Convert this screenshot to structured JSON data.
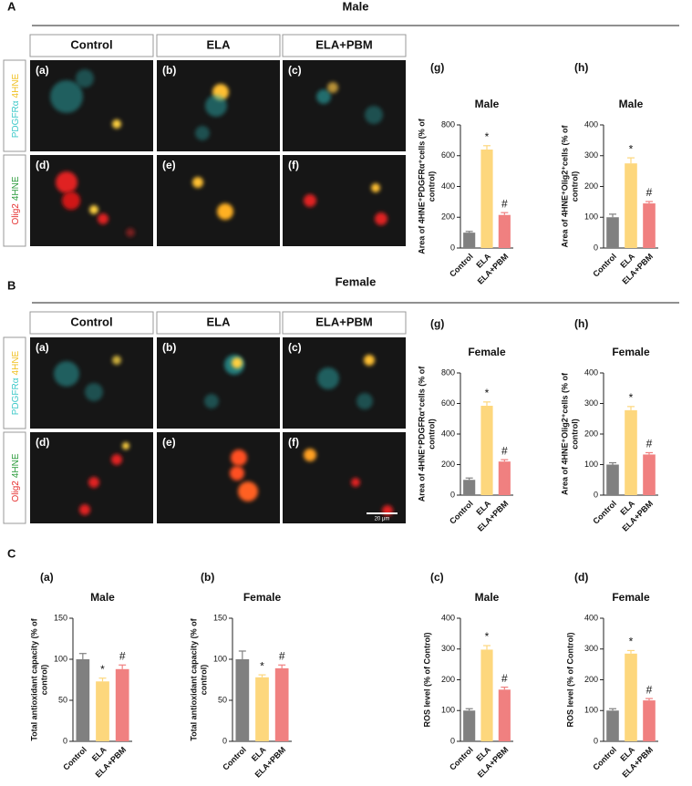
{
  "sections": [
    {
      "letter": "A",
      "title": "Male",
      "columns": [
        "Control",
        "ELA",
        "ELA+PBM"
      ],
      "rows": [
        [
          "PDGFRα",
          "4HNE"
        ],
        [
          "Olig2",
          "4HNE"
        ]
      ],
      "panels": [
        "(a)",
        "(b)",
        "(c)",
        "(d)",
        "(e)",
        "(f)"
      ]
    },
    {
      "letter": "B",
      "title": "Female",
      "columns": [
        "Control",
        "ELA",
        "ELA+PBM"
      ],
      "rows": [
        [
          "PDGFRα",
          "4HNE"
        ],
        [
          "Olig2",
          "4HNE"
        ]
      ],
      "panels": [
        "(a)",
        "(b)",
        "(c)",
        "(d)",
        "(e)",
        "(f)"
      ]
    }
  ],
  "scale_bar": "20 μm",
  "section_c_letter": "C",
  "chart_data": [
    {
      "type": "bar",
      "panel_label": "(g)",
      "title": "Male",
      "ylabel": [
        "Area of 4HNE⁺PDGFRα⁺cells (% of",
        "control)"
      ],
      "categories": [
        "Control",
        "ELA",
        "ELA+PBM"
      ],
      "values": [
        100,
        640,
        215
      ],
      "errors": [
        8,
        25,
        15
      ],
      "annotations": [
        null,
        "*",
        "#"
      ],
      "colors": [
        "#808080",
        "#fdd77d",
        "#f08080"
      ],
      "ylim": [
        0,
        800
      ],
      "yticks": [
        0,
        200,
        400,
        600,
        800
      ]
    },
    {
      "type": "bar",
      "panel_label": "(h)",
      "title": "Male",
      "ylabel": [
        "Area of 4HNE⁺Olig2⁺cells (% of",
        "control)"
      ],
      "categories": [
        "Control",
        "ELA",
        "ELA+PBM"
      ],
      "values": [
        100,
        275,
        145
      ],
      "errors": [
        10,
        18,
        6
      ],
      "annotations": [
        null,
        "*",
        "#"
      ],
      "colors": [
        "#808080",
        "#fdd77d",
        "#f08080"
      ],
      "ylim": [
        0,
        400
      ],
      "yticks": [
        0,
        100,
        200,
        300,
        400
      ]
    },
    {
      "type": "bar",
      "panel_label": "(g)",
      "title": "Female",
      "ylabel": [
        "Area of 4HNE⁺PDGFRα⁺cells (% of",
        "control)"
      ],
      "categories": [
        "Control",
        "ELA",
        "ELA+PBM"
      ],
      "values": [
        100,
        585,
        220
      ],
      "errors": [
        12,
        25,
        12
      ],
      "annotations": [
        null,
        "*",
        "#"
      ],
      "colors": [
        "#808080",
        "#fdd77d",
        "#f08080"
      ],
      "ylim": [
        0,
        800
      ],
      "yticks": [
        0,
        200,
        400,
        600,
        800
      ]
    },
    {
      "type": "bar",
      "panel_label": "(h)",
      "title": "Female",
      "ylabel": [
        "Area of 4HNE⁺Olig2⁺cells (% of",
        "control)"
      ],
      "categories": [
        "Control",
        "ELA",
        "ELA+PBM"
      ],
      "values": [
        100,
        278,
        133
      ],
      "errors": [
        6,
        12,
        6
      ],
      "annotations": [
        null,
        "*",
        "#"
      ],
      "colors": [
        "#808080",
        "#fdd77d",
        "#f08080"
      ],
      "ylim": [
        0,
        400
      ],
      "yticks": [
        0,
        100,
        200,
        300,
        400
      ]
    },
    {
      "type": "bar",
      "panel_label": "(a)",
      "title": "Male",
      "ylabel": [
        "Total antioxidant capacity (% of",
        "control)"
      ],
      "categories": [
        "Control",
        "ELA",
        "ELA+PBM"
      ],
      "values": [
        100,
        73,
        88
      ],
      "errors": [
        7,
        4,
        5
      ],
      "annotations": [
        null,
        "*",
        "#"
      ],
      "colors": [
        "#808080",
        "#fdd77d",
        "#f08080"
      ],
      "ylim": [
        0,
        150
      ],
      "yticks": [
        0,
        50,
        100,
        150
      ]
    },
    {
      "type": "bar",
      "panel_label": "(b)",
      "title": "Female",
      "ylabel": [
        "Total antioxidant capacity (% of",
        "control)"
      ],
      "categories": [
        "Control",
        "ELA",
        "ELA+PBM"
      ],
      "values": [
        100,
        78,
        89
      ],
      "errors": [
        10,
        3,
        4
      ],
      "annotations": [
        null,
        "*",
        "#"
      ],
      "colors": [
        "#808080",
        "#fdd77d",
        "#f08080"
      ],
      "ylim": [
        0,
        150
      ],
      "yticks": [
        0,
        50,
        100,
        150
      ]
    },
    {
      "type": "bar",
      "panel_label": "(c)",
      "title": "Male",
      "ylabel": [
        "ROS level (% of Control)"
      ],
      "categories": [
        "Control",
        "ELA",
        "ELA+PBM"
      ],
      "values": [
        100,
        298,
        168
      ],
      "errors": [
        6,
        13,
        8
      ],
      "annotations": [
        null,
        "*",
        "#"
      ],
      "colors": [
        "#808080",
        "#fdd77d",
        "#f08080"
      ],
      "ylim": [
        0,
        400
      ],
      "yticks": [
        0,
        100,
        200,
        300,
        400
      ]
    },
    {
      "type": "bar",
      "panel_label": "(d)",
      "title": "Female",
      "ylabel": [
        "ROS level (% of Control)"
      ],
      "categories": [
        "Control",
        "ELA",
        "ELA+PBM"
      ],
      "values": [
        100,
        285,
        133
      ],
      "errors": [
        6,
        10,
        6
      ],
      "annotations": [
        null,
        "*",
        "#"
      ],
      "colors": [
        "#808080",
        "#fdd77d",
        "#f08080"
      ],
      "ylim": [
        0,
        400
      ],
      "yticks": [
        0,
        100,
        200,
        300,
        400
      ]
    }
  ]
}
